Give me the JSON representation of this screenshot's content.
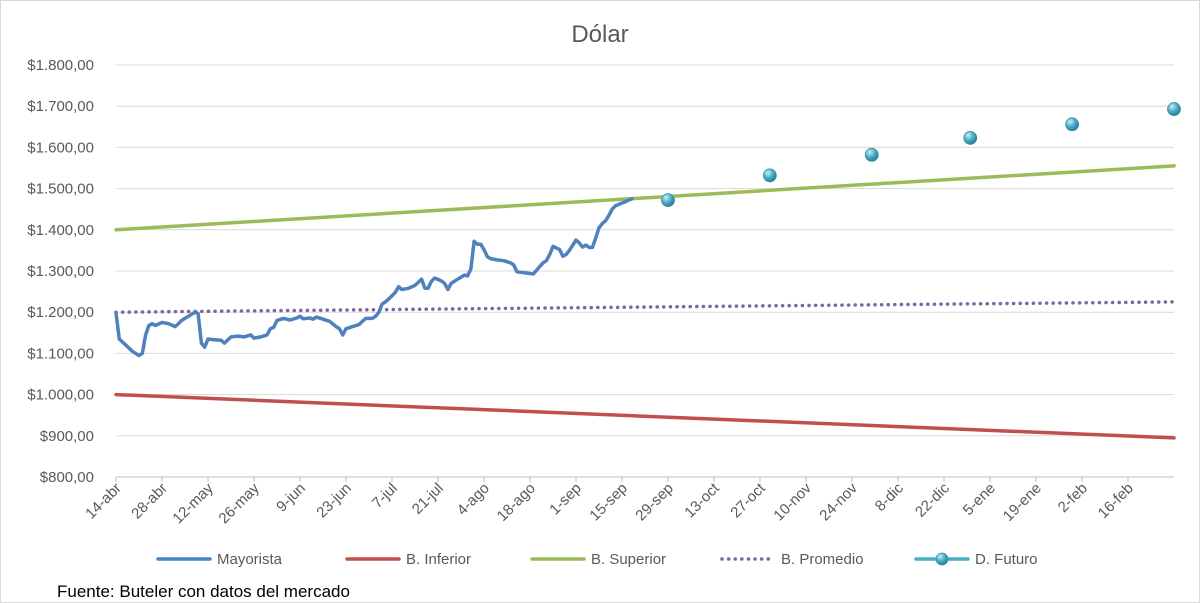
{
  "chart_data": {
    "type": "line",
    "title": "Dólar",
    "xlabel": "",
    "ylabel": "",
    "ylim": [
      800,
      1800
    ],
    "y_ticks": [
      "$800,00",
      "$900,00",
      "$1.000,00",
      "$1.100,00",
      "$1.200,00",
      "$1.300,00",
      "$1.400,00",
      "$1.500,00",
      "$1.600,00",
      "$1.700,00",
      "$1.800,00"
    ],
    "y_tick_values": [
      800,
      900,
      1000,
      1100,
      1200,
      1300,
      1400,
      1500,
      1600,
      1700,
      1800
    ],
    "x_ticks": [
      "14-abr",
      "28-abr",
      "12-may",
      "26-may",
      "9-jun",
      "23-jun",
      "7-jul",
      "21-jul",
      "4-ago",
      "18-ago",
      "1-sep",
      "15-sep",
      "29-sep",
      "13-oct",
      "27-oct",
      "10-nov",
      "24-nov",
      "8-dic",
      "22-dic",
      "5-ene",
      "19-ene",
      "2-feb",
      "16-feb"
    ],
    "x_tick_days": [
      0,
      14,
      28,
      42,
      56,
      70,
      84,
      98,
      112,
      126,
      140,
      154,
      168,
      182,
      196,
      210,
      224,
      238,
      252,
      266,
      280,
      294,
      308
    ],
    "x_range_days": [
      0,
      322
    ],
    "grid": "horizontal",
    "legend_position": "bottom",
    "series": [
      {
        "name": "Mayorista",
        "color": "#4f81bd",
        "style": "solid",
        "points": [
          [
            0,
            1198
          ],
          [
            1,
            1135
          ],
          [
            3,
            1120
          ],
          [
            5,
            1105
          ],
          [
            7,
            1095
          ],
          [
            8,
            1100
          ],
          [
            9,
            1145
          ],
          [
            10,
            1168
          ],
          [
            11,
            1172
          ],
          [
            12,
            1168
          ],
          [
            14,
            1175
          ],
          [
            16,
            1172
          ],
          [
            18,
            1165
          ],
          [
            19,
            1172
          ],
          [
            20,
            1180
          ],
          [
            22,
            1190
          ],
          [
            24,
            1200
          ],
          [
            25,
            1197
          ],
          [
            26,
            1125
          ],
          [
            27,
            1115
          ],
          [
            28,
            1135
          ],
          [
            30,
            1133
          ],
          [
            32,
            1132
          ],
          [
            33,
            1125
          ],
          [
            35,
            1140
          ],
          [
            37,
            1142
          ],
          [
            39,
            1140
          ],
          [
            41,
            1145
          ],
          [
            42,
            1137
          ],
          [
            44,
            1140
          ],
          [
            46,
            1145
          ],
          [
            47,
            1160
          ],
          [
            48,
            1163
          ],
          [
            49,
            1180
          ],
          [
            51,
            1185
          ],
          [
            53,
            1181
          ],
          [
            55,
            1186
          ],
          [
            56,
            1190
          ],
          [
            57,
            1184
          ],
          [
            59,
            1186
          ],
          [
            60,
            1183
          ],
          [
            61,
            1188
          ],
          [
            63,
            1183
          ],
          [
            65,
            1178
          ],
          [
            67,
            1165
          ],
          [
            68,
            1160
          ],
          [
            69,
            1145
          ],
          [
            70,
            1160
          ],
          [
            72,
            1165
          ],
          [
            74,
            1170
          ],
          [
            75,
            1178
          ],
          [
            76,
            1185
          ],
          [
            78,
            1185
          ],
          [
            79,
            1190
          ],
          [
            80,
            1200
          ],
          [
            81,
            1220
          ],
          [
            82,
            1225
          ],
          [
            83,
            1232
          ],
          [
            85,
            1248
          ],
          [
            86,
            1262
          ],
          [
            87,
            1255
          ],
          [
            89,
            1258
          ],
          [
            91,
            1265
          ],
          [
            93,
            1280
          ],
          [
            94,
            1258
          ],
          [
            95,
            1258
          ],
          [
            96,
            1275
          ],
          [
            97,
            1283
          ],
          [
            99,
            1276
          ],
          [
            100,
            1270
          ],
          [
            101,
            1255
          ],
          [
            102,
            1270
          ],
          [
            104,
            1280
          ],
          [
            105,
            1285
          ],
          [
            106,
            1290
          ],
          [
            107,
            1288
          ],
          [
            108,
            1305
          ],
          [
            109,
            1372
          ],
          [
            110,
            1365
          ],
          [
            111,
            1365
          ],
          [
            112,
            1352
          ],
          [
            113,
            1335
          ],
          [
            114,
            1330
          ],
          [
            116,
            1327
          ],
          [
            118,
            1325
          ],
          [
            120,
            1320
          ],
          [
            121,
            1315
          ],
          [
            122,
            1298
          ],
          [
            124,
            1296
          ],
          [
            126,
            1294
          ],
          [
            127,
            1293
          ],
          [
            128,
            1302
          ],
          [
            130,
            1320
          ],
          [
            131,
            1325
          ],
          [
            132,
            1340
          ],
          [
            133,
            1360
          ],
          [
            135,
            1352
          ],
          [
            136,
            1336
          ],
          [
            137,
            1340
          ],
          [
            138,
            1350
          ],
          [
            140,
            1375
          ],
          [
            141,
            1368
          ],
          [
            142,
            1358
          ],
          [
            143,
            1363
          ],
          [
            144,
            1357
          ],
          [
            145,
            1357
          ],
          [
            146,
            1380
          ],
          [
            147,
            1405
          ],
          [
            148,
            1415
          ],
          [
            149,
            1422
          ],
          [
            150,
            1435
          ],
          [
            151,
            1450
          ],
          [
            152,
            1458
          ],
          [
            154,
            1465
          ],
          [
            155,
            1468
          ],
          [
            156,
            1472
          ],
          [
            157,
            1475
          ]
        ]
      },
      {
        "name": "B. Inferior",
        "color": "#c0504d",
        "style": "solid",
        "points": [
          [
            0,
            1000
          ],
          [
            322,
            895
          ]
        ]
      },
      {
        "name": "B. Superior",
        "color": "#9bbb59",
        "style": "solid",
        "points": [
          [
            0,
            1400
          ],
          [
            322,
            1555
          ]
        ]
      },
      {
        "name": "B. Promedio",
        "color": "#8064a2",
        "style": "dotted",
        "points": [
          [
            0,
            1200
          ],
          [
            322,
            1225
          ]
        ]
      },
      {
        "name": "D. Futuro",
        "color": "#4bacc6",
        "style": "markers",
        "points": [
          [
            168,
            1472
          ],
          [
            199,
            1532
          ],
          [
            230,
            1582
          ],
          [
            260,
            1623
          ],
          [
            291,
            1656
          ],
          [
            322,
            1693
          ]
        ]
      }
    ]
  },
  "source_note": "Fuente: Buteler con datos del mercado"
}
